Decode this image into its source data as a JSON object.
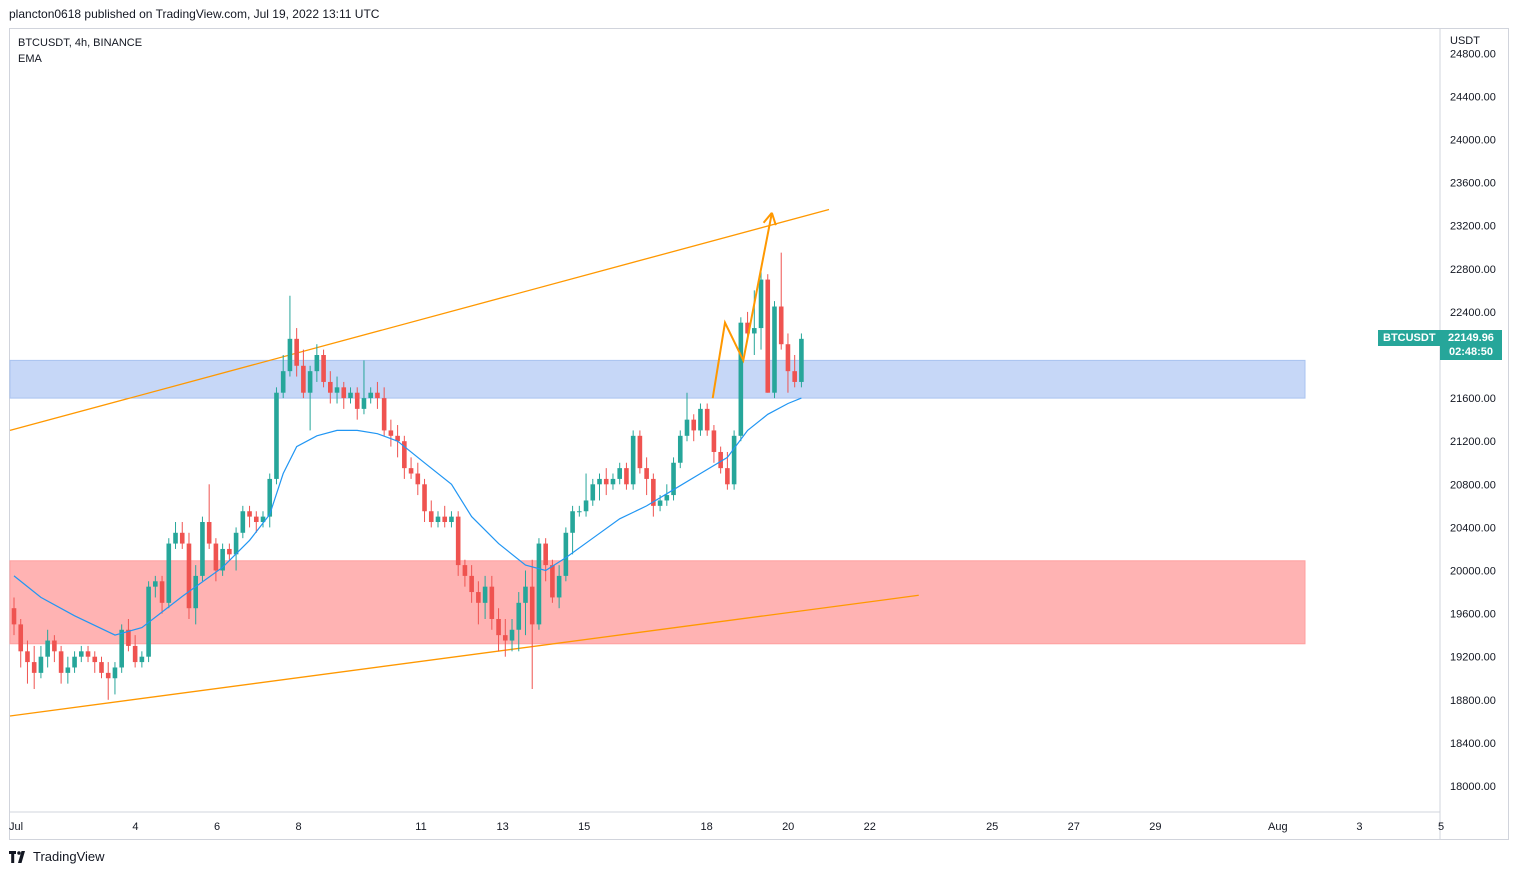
{
  "header": {
    "published": "plancton0618 published on TradingView.com, Jul 19, 2022 13:11 UTC"
  },
  "legend": {
    "symbol": "BTCUSDT, 4h, BINANCE",
    "indicator": "EMA"
  },
  "price_axis": {
    "unit": "USDT",
    "last_price": "22149.96",
    "countdown": "02:48:50",
    "symbol_tag": "BTCUSDT"
  },
  "footer": {
    "brand": "TradingView"
  },
  "colors": {
    "up": "#26a69a",
    "down": "#ef5350",
    "ema": "#2196f3",
    "trendline": "#ff9800",
    "resistance_zone": "#c6d7f7",
    "support_zone": "#ffb3b3"
  },
  "chart_data": {
    "type": "candlestick",
    "title": "BTCUSDT, 4h, BINANCE",
    "ylim": [
      17800,
      24800
    ],
    "y_ticks": [
      "24800.00",
      "24400.00",
      "24000.00",
      "23600.00",
      "23200.00",
      "22800.00",
      "22400.00",
      "22000.00",
      "21600.00",
      "21200.00",
      "20800.00",
      "20400.00",
      "20000.00",
      "19600.00",
      "19200.00",
      "18800.00",
      "18400.00",
      "18000.00"
    ],
    "x_ticks": [
      {
        "label": "Jul",
        "day": 0
      },
      {
        "label": "4",
        "day": 3
      },
      {
        "label": "6",
        "day": 5
      },
      {
        "label": "8",
        "day": 7
      },
      {
        "label": "11",
        "day": 10
      },
      {
        "label": "13",
        "day": 12
      },
      {
        "label": "15",
        "day": 14
      },
      {
        "label": "18",
        "day": 17
      },
      {
        "label": "20",
        "day": 19
      },
      {
        "label": "22",
        "day": 21
      },
      {
        "label": "25",
        "day": 24
      },
      {
        "label": "27",
        "day": 26
      },
      {
        "label": "29",
        "day": 28
      },
      {
        "label": "Aug",
        "day": 31
      },
      {
        "label": "3",
        "day": 33
      },
      {
        "label": "5",
        "day": 35
      }
    ],
    "zones": [
      {
        "name": "resistance",
        "low": 21600,
        "high": 21950
      },
      {
        "name": "support",
        "low": 19320,
        "high": 20090
      }
    ],
    "trendlines": [
      {
        "from": {
          "day": 0,
          "price": 21300
        },
        "to": {
          "day": 20,
          "price": 23350
        }
      },
      {
        "from": {
          "day": 0,
          "price": 18650
        },
        "to": {
          "day": 22.2,
          "price": 19770
        }
      }
    ],
    "projection": [
      {
        "day": 17.15,
        "price": 21600
      },
      {
        "day": 17.45,
        "price": 22300
      },
      {
        "day": 17.9,
        "price": 21950
      },
      {
        "day": 18.6,
        "price": 23320
      }
    ],
    "candles": [
      [
        19650,
        19750,
        19400,
        19500
      ],
      [
        19500,
        19550,
        19100,
        19250
      ],
      [
        19250,
        19350,
        18950,
        19150
      ],
      [
        19150,
        19300,
        18900,
        19050
      ],
      [
        19050,
        19300,
        19000,
        19200
      ],
      [
        19200,
        19450,
        19100,
        19350
      ],
      [
        19350,
        19400,
        19150,
        19250
      ],
      [
        19250,
        19300,
        18950,
        19050
      ],
      [
        19050,
        19200,
        18950,
        19100
      ],
      [
        19100,
        19250,
        19050,
        19200
      ],
      [
        19200,
        19300,
        19150,
        19250
      ],
      [
        19250,
        19300,
        19150,
        19200
      ],
      [
        19200,
        19250,
        19050,
        19150
      ],
      [
        19150,
        19200,
        19000,
        19050
      ],
      [
        19050,
        19150,
        18800,
        19000
      ],
      [
        19000,
        19150,
        18850,
        19100
      ],
      [
        19100,
        19500,
        19050,
        19450
      ],
      [
        19450,
        19550,
        19250,
        19300
      ],
      [
        19300,
        19400,
        19100,
        19150
      ],
      [
        19150,
        19250,
        19100,
        19200
      ],
      [
        19200,
        19900,
        19150,
        19850
      ],
      [
        19850,
        19950,
        19750,
        19900
      ],
      [
        19900,
        19950,
        19600,
        19700
      ],
      [
        19700,
        20300,
        19650,
        20250
      ],
      [
        20250,
        20450,
        20200,
        20350
      ],
      [
        20350,
        20450,
        20200,
        20250
      ],
      [
        20250,
        20350,
        19550,
        19650
      ],
      [
        19650,
        20050,
        19500,
        19950
      ],
      [
        19950,
        20500,
        19900,
        20450
      ],
      [
        20450,
        20800,
        20200,
        20250
      ],
      [
        20250,
        20300,
        19900,
        20000
      ],
      [
        20000,
        20250,
        19950,
        20200
      ],
      [
        20200,
        20250,
        20100,
        20150
      ],
      [
        20150,
        20400,
        20000,
        20350
      ],
      [
        20350,
        20600,
        20300,
        20550
      ],
      [
        20550,
        20600,
        20400,
        20500
      ],
      [
        20500,
        20550,
        20350,
        20450
      ],
      [
        20450,
        20550,
        20400,
        20500
      ],
      [
        20500,
        20900,
        20400,
        20850
      ],
      [
        20850,
        21700,
        20800,
        21650
      ],
      [
        21650,
        22000,
        21600,
        21850
      ],
      [
        21850,
        22550,
        21800,
        22150
      ],
      [
        22150,
        22250,
        21800,
        21900
      ],
      [
        21900,
        22050,
        21600,
        21650
      ],
      [
        21650,
        21900,
        21300,
        21850
      ],
      [
        21850,
        22100,
        21750,
        22000
      ],
      [
        22000,
        22050,
        21700,
        21750
      ],
      [
        21750,
        21850,
        21550,
        21650
      ],
      [
        21650,
        21800,
        21550,
        21700
      ],
      [
        21700,
        21750,
        21500,
        21600
      ],
      [
        21600,
        21700,
        21550,
        21650
      ],
      [
        21650,
        21700,
        21400,
        21500
      ],
      [
        21500,
        21950,
        21450,
        21600
      ],
      [
        21600,
        21700,
        21550,
        21650
      ],
      [
        21650,
        21750,
        21500,
        21600
      ],
      [
        21600,
        21700,
        21250,
        21300
      ],
      [
        21300,
        21400,
        21150,
        21250
      ],
      [
        21250,
        21350,
        21050,
        21200
      ],
      [
        21200,
        21250,
        20850,
        20950
      ],
      [
        20950,
        21050,
        20850,
        20900
      ],
      [
        20900,
        21000,
        20700,
        20800
      ],
      [
        20800,
        20850,
        20450,
        20550
      ],
      [
        20550,
        20650,
        20400,
        20450
      ],
      [
        20450,
        20550,
        20400,
        20500
      ],
      [
        20500,
        20600,
        20400,
        20450
      ],
      [
        20450,
        20550,
        20400,
        20500
      ],
      [
        20500,
        20550,
        19950,
        20050
      ],
      [
        20050,
        20100,
        19850,
        19950
      ],
      [
        19950,
        20050,
        19700,
        19800
      ],
      [
        19800,
        19900,
        19500,
        19700
      ],
      [
        19700,
        19950,
        19550,
        19850
      ],
      [
        19850,
        19950,
        19450,
        19550
      ],
      [
        19550,
        19650,
        19250,
        19400
      ],
      [
        19400,
        19550,
        19200,
        19350
      ],
      [
        19350,
        19550,
        19250,
        19450
      ],
      [
        19450,
        19800,
        19250,
        19700
      ],
      [
        19700,
        20000,
        19400,
        19850
      ],
      [
        19850,
        20100,
        18900,
        19500
      ],
      [
        19500,
        20300,
        19450,
        20250
      ],
      [
        20250,
        20300,
        19900,
        20050
      ],
      [
        20050,
        20100,
        19700,
        19750
      ],
      [
        19750,
        20050,
        19650,
        19950
      ],
      [
        19950,
        20400,
        19900,
        20350
      ],
      [
        20350,
        20600,
        20150,
        20550
      ],
      [
        20550,
        20600,
        20500,
        20550
      ],
      [
        20550,
        20900,
        20500,
        20650
      ],
      [
        20650,
        20850,
        20600,
        20800
      ],
      [
        20800,
        20900,
        20650,
        20850
      ],
      [
        20850,
        20950,
        20700,
        20800
      ],
      [
        20800,
        20900,
        20750,
        20850
      ],
      [
        20850,
        21000,
        20800,
        20950
      ],
      [
        20950,
        21000,
        20750,
        20800
      ],
      [
        20800,
        21300,
        20750,
        21250
      ],
      [
        21250,
        21300,
        20900,
        20950
      ],
      [
        20950,
        21050,
        20700,
        20850
      ],
      [
        20850,
        20900,
        20500,
        20600
      ],
      [
        20600,
        20700,
        20550,
        20650
      ],
      [
        20650,
        20800,
        20600,
        20700
      ],
      [
        20700,
        21050,
        20650,
        21000
      ],
      [
        21000,
        21300,
        20950,
        21250
      ],
      [
        21250,
        21650,
        21200,
        21400
      ],
      [
        21400,
        21450,
        21200,
        21300
      ],
      [
        21300,
        21550,
        21250,
        21500
      ],
      [
        21500,
        21550,
        21250,
        21300
      ],
      [
        21300,
        21350,
        21000,
        21100
      ],
      [
        21100,
        21150,
        20900,
        20950
      ],
      [
        20950,
        21100,
        20750,
        20800
      ],
      [
        20800,
        21300,
        20750,
        21250
      ],
      [
        21250,
        22350,
        21200,
        22300
      ],
      [
        22300,
        22400,
        22150,
        22200
      ],
      [
        22200,
        22600,
        22000,
        22250
      ],
      [
        22250,
        22800,
        22050,
        22700
      ],
      [
        22700,
        22750,
        21650,
        21650
      ],
      [
        21650,
        22500,
        21600,
        22450
      ],
      [
        22450,
        22950,
        22050,
        22100
      ],
      [
        22100,
        22200,
        21650,
        21850
      ],
      [
        21850,
        22000,
        21700,
        21750
      ],
      [
        21750,
        22200,
        21700,
        22150
      ]
    ],
    "ema": [
      [
        0,
        19950
      ],
      [
        4,
        19750
      ],
      [
        9,
        19580
      ],
      [
        15,
        19400
      ],
      [
        19,
        19470
      ],
      [
        25,
        19760
      ],
      [
        31,
        20030
      ],
      [
        35,
        20280
      ],
      [
        38,
        20520
      ],
      [
        40,
        20900
      ],
      [
        42,
        21150
      ],
      [
        45,
        21250
      ],
      [
        48,
        21300
      ],
      [
        51,
        21300
      ],
      [
        54,
        21270
      ],
      [
        57,
        21200
      ],
      [
        61,
        21000
      ],
      [
        65,
        20800
      ],
      [
        68,
        20500
      ],
      [
        72,
        20250
      ],
      [
        76,
        20050
      ],
      [
        79,
        20000
      ],
      [
        82,
        20120
      ],
      [
        86,
        20300
      ],
      [
        90,
        20480
      ],
      [
        94,
        20600
      ],
      [
        98,
        20750
      ],
      [
        102,
        20900
      ],
      [
        106,
        21050
      ],
      [
        109,
        21300
      ],
      [
        112,
        21450
      ],
      [
        115,
        21550
      ],
      [
        117,
        21600
      ]
    ]
  }
}
